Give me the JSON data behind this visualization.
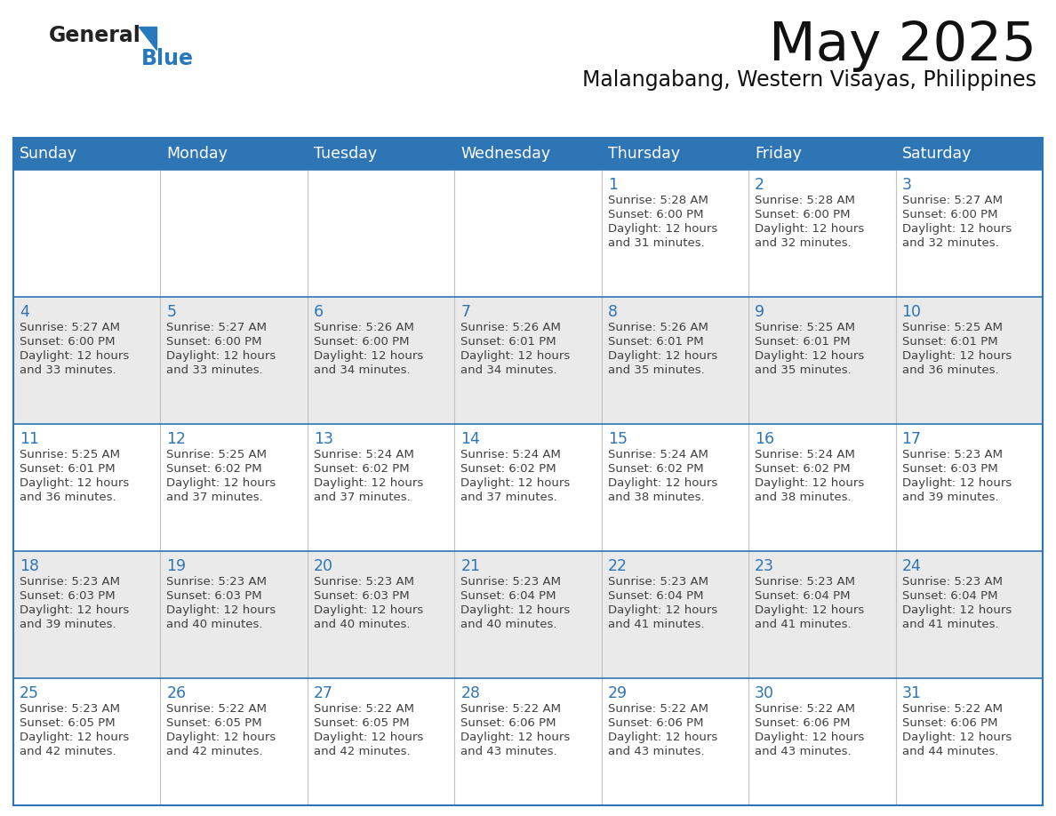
{
  "title": "May 2025",
  "subtitle": "Malangabang, Western Visayas, Philippines",
  "header_bg": "#2E75B6",
  "header_text_color": "#FFFFFF",
  "header_days": [
    "Sunday",
    "Monday",
    "Tuesday",
    "Wednesday",
    "Thursday",
    "Friday",
    "Saturday"
  ],
  "cell_bg_odd": "#EAEAEA",
  "cell_bg_even": "#FFFFFF",
  "day_number_color": "#2E75B6",
  "text_color": "#404040",
  "border_color": "#2E75B6",
  "row_line_color": "#2E75B6",
  "col_line_color": "#C0C0C0",
  "logo_general_color": "#222222",
  "logo_blue_color": "#2878BE",
  "calendar": [
    [
      null,
      null,
      null,
      null,
      {
        "day": 1,
        "sunrise": "5:28 AM",
        "sunset": "6:00 PM",
        "daylight": "12 hours and 31 minutes."
      },
      {
        "day": 2,
        "sunrise": "5:28 AM",
        "sunset": "6:00 PM",
        "daylight": "12 hours and 32 minutes."
      },
      {
        "day": 3,
        "sunrise": "5:27 AM",
        "sunset": "6:00 PM",
        "daylight": "12 hours and 32 minutes."
      }
    ],
    [
      {
        "day": 4,
        "sunrise": "5:27 AM",
        "sunset": "6:00 PM",
        "daylight": "12 hours and 33 minutes."
      },
      {
        "day": 5,
        "sunrise": "5:27 AM",
        "sunset": "6:00 PM",
        "daylight": "12 hours and 33 minutes."
      },
      {
        "day": 6,
        "sunrise": "5:26 AM",
        "sunset": "6:00 PM",
        "daylight": "12 hours and 34 minutes."
      },
      {
        "day": 7,
        "sunrise": "5:26 AM",
        "sunset": "6:01 PM",
        "daylight": "12 hours and 34 minutes."
      },
      {
        "day": 8,
        "sunrise": "5:26 AM",
        "sunset": "6:01 PM",
        "daylight": "12 hours and 35 minutes."
      },
      {
        "day": 9,
        "sunrise": "5:25 AM",
        "sunset": "6:01 PM",
        "daylight": "12 hours and 35 minutes."
      },
      {
        "day": 10,
        "sunrise": "5:25 AM",
        "sunset": "6:01 PM",
        "daylight": "12 hours and 36 minutes."
      }
    ],
    [
      {
        "day": 11,
        "sunrise": "5:25 AM",
        "sunset": "6:01 PM",
        "daylight": "12 hours and 36 minutes."
      },
      {
        "day": 12,
        "sunrise": "5:25 AM",
        "sunset": "6:02 PM",
        "daylight": "12 hours and 37 minutes."
      },
      {
        "day": 13,
        "sunrise": "5:24 AM",
        "sunset": "6:02 PM",
        "daylight": "12 hours and 37 minutes."
      },
      {
        "day": 14,
        "sunrise": "5:24 AM",
        "sunset": "6:02 PM",
        "daylight": "12 hours and 37 minutes."
      },
      {
        "day": 15,
        "sunrise": "5:24 AM",
        "sunset": "6:02 PM",
        "daylight": "12 hours and 38 minutes."
      },
      {
        "day": 16,
        "sunrise": "5:24 AM",
        "sunset": "6:02 PM",
        "daylight": "12 hours and 38 minutes."
      },
      {
        "day": 17,
        "sunrise": "5:23 AM",
        "sunset": "6:03 PM",
        "daylight": "12 hours and 39 minutes."
      }
    ],
    [
      {
        "day": 18,
        "sunrise": "5:23 AM",
        "sunset": "6:03 PM",
        "daylight": "12 hours and 39 minutes."
      },
      {
        "day": 19,
        "sunrise": "5:23 AM",
        "sunset": "6:03 PM",
        "daylight": "12 hours and 40 minutes."
      },
      {
        "day": 20,
        "sunrise": "5:23 AM",
        "sunset": "6:03 PM",
        "daylight": "12 hours and 40 minutes."
      },
      {
        "day": 21,
        "sunrise": "5:23 AM",
        "sunset": "6:04 PM",
        "daylight": "12 hours and 40 minutes."
      },
      {
        "day": 22,
        "sunrise": "5:23 AM",
        "sunset": "6:04 PM",
        "daylight": "12 hours and 41 minutes."
      },
      {
        "day": 23,
        "sunrise": "5:23 AM",
        "sunset": "6:04 PM",
        "daylight": "12 hours and 41 minutes."
      },
      {
        "day": 24,
        "sunrise": "5:23 AM",
        "sunset": "6:04 PM",
        "daylight": "12 hours and 41 minutes."
      }
    ],
    [
      {
        "day": 25,
        "sunrise": "5:23 AM",
        "sunset": "6:05 PM",
        "daylight": "12 hours and 42 minutes."
      },
      {
        "day": 26,
        "sunrise": "5:22 AM",
        "sunset": "6:05 PM",
        "daylight": "12 hours and 42 minutes."
      },
      {
        "day": 27,
        "sunrise": "5:22 AM",
        "sunset": "6:05 PM",
        "daylight": "12 hours and 42 minutes."
      },
      {
        "day": 28,
        "sunrise": "5:22 AM",
        "sunset": "6:06 PM",
        "daylight": "12 hours and 43 minutes."
      },
      {
        "day": 29,
        "sunrise": "5:22 AM",
        "sunset": "6:06 PM",
        "daylight": "12 hours and 43 minutes."
      },
      {
        "day": 30,
        "sunrise": "5:22 AM",
        "sunset": "6:06 PM",
        "daylight": "12 hours and 43 minutes."
      },
      {
        "day": 31,
        "sunrise": "5:22 AM",
        "sunset": "6:06 PM",
        "daylight": "12 hours and 44 minutes."
      }
    ]
  ],
  "figsize": [
    11.88,
    9.18
  ],
  "dpi": 100
}
